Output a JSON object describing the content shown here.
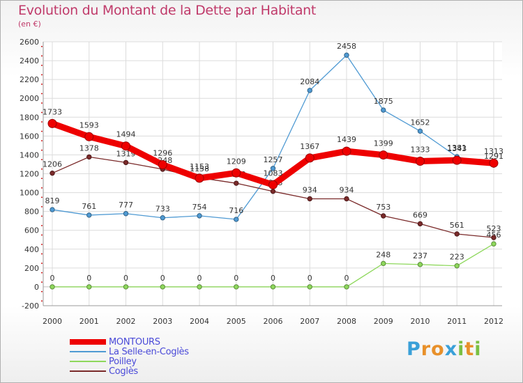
{
  "header": {
    "title": "Evolution du Montant de la Dette par Habitant",
    "subtitle": "(en €)"
  },
  "logo": {
    "letters": [
      "P",
      "r",
      "o",
      "x",
      "i",
      "t",
      "i"
    ],
    "colors": [
      "#3aa0d8",
      "#e8902a",
      "#e8902a",
      "#3aa0d8",
      "#7ac043",
      "#e8902a",
      "#7ac043"
    ]
  },
  "chart_data": {
    "type": "line",
    "x": [
      "2000",
      "2001",
      "2002",
      "2003",
      "2004",
      "2005",
      "2006",
      "2007",
      "2008",
      "2009",
      "2010",
      "2011",
      "2012"
    ],
    "ylim": [
      -200,
      2600
    ],
    "yticks": [
      -200,
      0,
      200,
      400,
      600,
      800,
      1000,
      1200,
      1400,
      1600,
      1800,
      2000,
      2200,
      2400,
      2600
    ],
    "grid": true,
    "legend_position": "bottom-left",
    "series": [
      {
        "name": "La Selle-en-Coglès",
        "color": "#4f9ad3",
        "values": [
          819,
          761,
          777,
          733,
          754,
          716,
          1257,
          2084,
          2458,
          1875,
          1652,
          1381,
          1291
        ]
      },
      {
        "name": "Poilley",
        "color": "#8ed85c",
        "values": [
          0,
          0,
          0,
          0,
          0,
          0,
          0,
          0,
          0,
          248,
          237,
          223,
          456
        ]
      },
      {
        "name": "Coglès",
        "color": "#7a2a2a",
        "values": [
          1206,
          1378,
          1319,
          1248,
          1158,
          1099,
          1013,
          934,
          934,
          753,
          669,
          561,
          523
        ]
      },
      {
        "name": "MONTOURS",
        "color": "#ee0000",
        "values": [
          1733,
          1593,
          1494,
          1296,
          1153,
          1209,
          1083,
          1367,
          1439,
          1399,
          1333,
          1343,
          1313
        ]
      }
    ],
    "legend_order": [
      "MONTOURS",
      "La Selle-en-Coglès",
      "Poilley",
      "Coglès"
    ]
  }
}
